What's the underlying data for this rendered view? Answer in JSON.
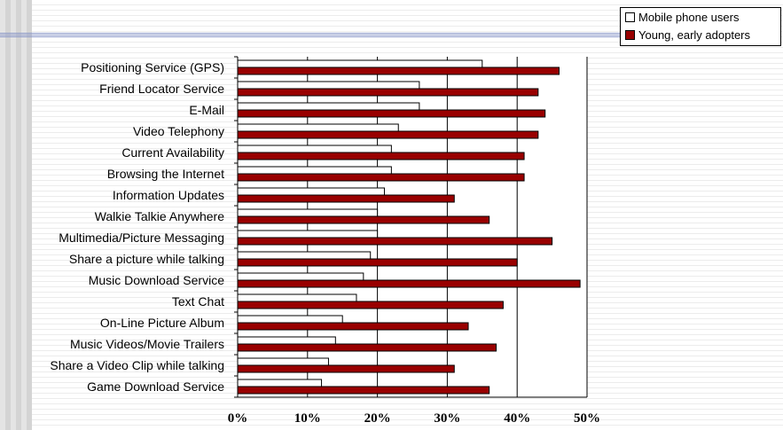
{
  "chart_data": {
    "type": "bar",
    "orientation": "horizontal",
    "categories": [
      "Positioning Service (GPS)",
      "Friend Locator Service",
      "E-Mail",
      "Video Telephony",
      "Current Availability",
      "Browsing the Internet",
      "Information Updates",
      "Walkie Talkie Anywhere",
      "Multimedia/Picture Messaging",
      "Share a picture while talking",
      "Music Download Service",
      "Text Chat",
      "On-Line Picture Album",
      "Music Videos/Movie Trailers",
      "Share a Video Clip while talking",
      "Game Download Service"
    ],
    "series": [
      {
        "name": "Mobile phone users",
        "color": "#ffffff",
        "values": [
          35,
          26,
          26,
          23,
          22,
          22,
          21,
          20,
          20,
          19,
          18,
          17,
          15,
          14,
          13,
          12
        ]
      },
      {
        "name": "Young, early adopters",
        "color": "#990000",
        "values": [
          46,
          43,
          44,
          43,
          41,
          41,
          31,
          36,
          45,
          40,
          49,
          38,
          33,
          37,
          31,
          36
        ]
      }
    ],
    "xlim": [
      0,
      50
    ],
    "xticks": [
      "0%",
      "10%",
      "20%",
      "30%",
      "40%",
      "50%"
    ],
    "grid": true,
    "legend": "top-right"
  }
}
